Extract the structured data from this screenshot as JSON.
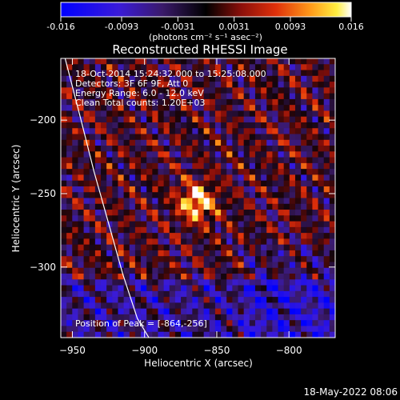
{
  "colorbar": {
    "tick_labels": [
      "-0.016",
      "-0.0093",
      "-0.0031",
      "0.0031",
      "0.0093",
      "0.016"
    ],
    "tick_values": [
      -0.016,
      -0.0093,
      -0.0031,
      0.0031,
      0.0093,
      0.016
    ],
    "range": [
      -0.016,
      0.016
    ],
    "units": "(photons cm⁻² s⁻¹ asec⁻²)",
    "colormap": "blue-purple-black-red-orange-yellow-white"
  },
  "title": "Reconstructed RHESSI Image",
  "annotations": {
    "time": "18-Oct-2014 15:24:32.000 to 15:25:08.000",
    "detectors": "Detectors: 3F 6F 9F, Att 0",
    "energy": "Energy Range: 6.0 - 12.0 keV",
    "clean": "Clean     Total counts: 1.20E+03",
    "peak": "Position of Peak = [-864,-256]"
  },
  "footer": {
    "timestamp": "18-May-2022 08:06"
  },
  "chart_data": {
    "type": "heatmap",
    "title": "Reconstructed RHESSI Image",
    "xlabel": "Heliocentric X (arcsec)",
    "ylabel": "Heliocentric Y (arcsec)",
    "xlim": [
      -958,
      -768
    ],
    "ylim": [
      -348,
      -158
    ],
    "x_ticks": [
      -950,
      -900,
      -850,
      -800
    ],
    "y_ticks": [
      -200,
      -250,
      -300
    ],
    "x_tick_labels": [
      "−950",
      "−900",
      "−850",
      "−800"
    ],
    "y_tick_labels": [
      "−200",
      "−250",
      "−300"
    ],
    "peak_position": [
      -864,
      -256
    ],
    "limb_curve": {
      "x": [
        -955,
        -944,
        -935,
        -925,
        -915,
        -905,
        -897
      ],
      "y": [
        -158,
        -200,
        -235,
        -270,
        -305,
        -335,
        -348
      ]
    },
    "grid": false
  }
}
